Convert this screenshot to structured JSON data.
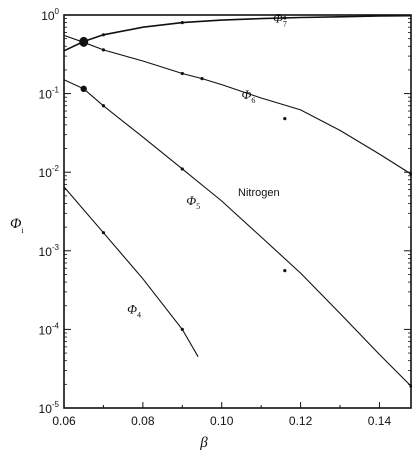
{
  "chart_data": {
    "type": "line",
    "title": "",
    "xlabel": "β",
    "ylabel": "Φ",
    "ylabel_sub": "i",
    "x_scale": "linear",
    "y_scale": "log",
    "xlim": [
      0.06,
      0.148
    ],
    "ylim": [
      1e-05,
      1
    ],
    "x_ticks": [
      {
        "value": 0.06,
        "label": "0.06"
      },
      {
        "value": 0.08,
        "label": "0.08"
      },
      {
        "value": 0.1,
        "label": "0.10"
      },
      {
        "value": 0.12,
        "label": "0.12"
      },
      {
        "value": 0.14,
        "label": "0.14"
      }
    ],
    "y_ticks": [
      {
        "value": 1,
        "base": "10",
        "exp": "0"
      },
      {
        "value": 0.1,
        "base": "10",
        "exp": "-1"
      },
      {
        "value": 0.01,
        "base": "10",
        "exp": "-2"
      },
      {
        "value": 0.001,
        "base": "10",
        "exp": "-3"
      },
      {
        "value": 0.0001,
        "base": "10",
        "exp": "-4"
      },
      {
        "value": 1e-05,
        "base": "10",
        "exp": "-5"
      }
    ],
    "annotation": "Nitrogen",
    "series": [
      {
        "name": "Φ",
        "sub": "7",
        "label_at": [
          0.113,
          0.8
        ],
        "x": [
          0.06,
          0.065,
          0.07,
          0.08,
          0.09,
          0.1,
          0.11,
          0.12,
          0.13,
          0.14,
          0.148
        ],
        "y": [
          0.35,
          0.46,
          0.56,
          0.7,
          0.8,
          0.86,
          0.9,
          0.93,
          0.95,
          0.97,
          0.98
        ],
        "points_x": [
          0.065,
          0.07,
          0.09,
          0.116
        ],
        "points_y": [
          0.46,
          0.56,
          0.8,
          0.92
        ]
      },
      {
        "name": "Φ",
        "sub": "6",
        "label_at": [
          0.105,
          0.085
        ],
        "x": [
          0.06,
          0.065,
          0.07,
          0.08,
          0.09,
          0.095,
          0.1,
          0.11,
          0.12,
          0.13,
          0.14,
          0.148
        ],
        "y": [
          0.55,
          0.45,
          0.36,
          0.26,
          0.18,
          0.155,
          0.13,
          0.088,
          0.062,
          0.034,
          0.017,
          0.0095
        ],
        "points_x": [
          0.065,
          0.07,
          0.09,
          0.095,
          0.116,
          0.148
        ],
        "points_y": [
          0.45,
          0.36,
          0.18,
          0.155,
          0.048,
          0.0095
        ]
      },
      {
        "name": "Φ",
        "sub": "5",
        "label_at": [
          0.091,
          0.0038
        ],
        "x": [
          0.06,
          0.065,
          0.07,
          0.08,
          0.09,
          0.1,
          0.11,
          0.12,
          0.13,
          0.14,
          0.148
        ],
        "y": [
          0.15,
          0.115,
          0.07,
          0.028,
          0.011,
          0.0043,
          0.0015,
          0.00052,
          0.00016,
          4.8e-05,
          1.9e-05
        ],
        "points_x": [
          0.065,
          0.07,
          0.09,
          0.116,
          0.148
        ],
        "points_y": [
          0.115,
          0.07,
          0.011,
          0.00056,
          1.9e-05
        ],
        "big_point": [
          0.065,
          0.115
        ]
      },
      {
        "name": "Φ",
        "sub": "4",
        "label_at": [
          0.076,
          0.00016
        ],
        "x": [
          0.06,
          0.07,
          0.08,
          0.09,
          0.094
        ],
        "y": [
          0.0065,
          0.0017,
          0.00044,
          0.0001,
          4.5e-05
        ],
        "points_x": [
          0.07,
          0.09
        ],
        "points_y": [
          0.0017,
          0.0001
        ]
      }
    ]
  }
}
